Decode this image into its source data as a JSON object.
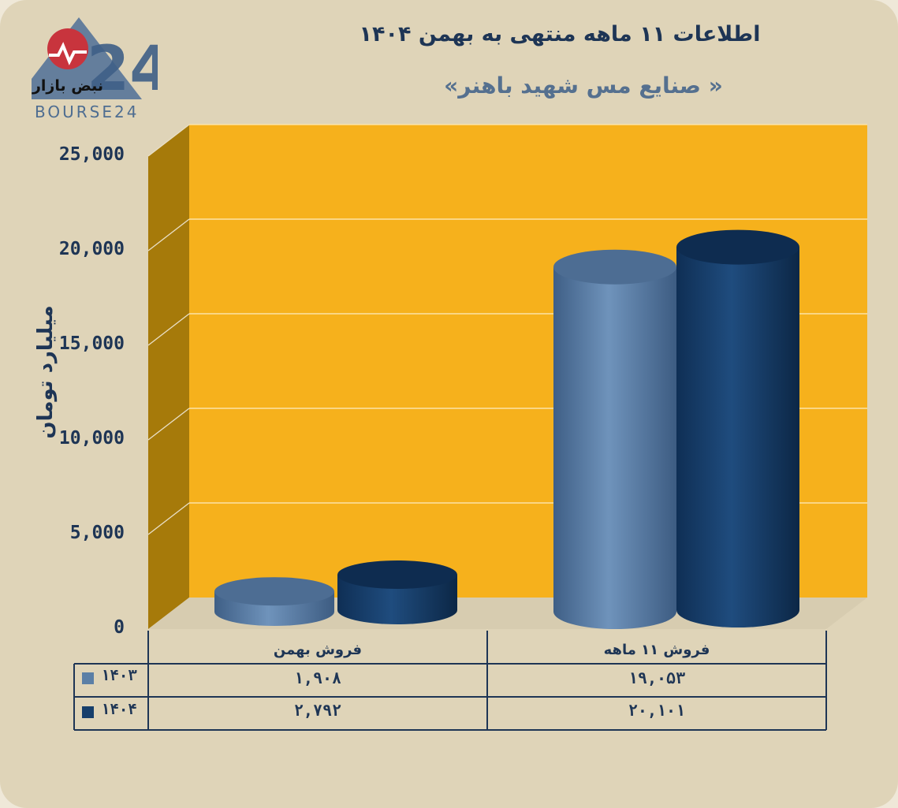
{
  "header": {
    "title": "اطلاعات ۱۱ ماهه منتهی به بهمن ۱۴۰۴",
    "subtitle": "« صنایع مس شهید باهنر»"
  },
  "logo": {
    "text_fa": "نبض بازار",
    "text_en": "BOURSE24",
    "mark": "24"
  },
  "colors": {
    "card_bg": "#dfd4b8",
    "plot_back": "#f6b11c",
    "plot_side": "#a67a0a",
    "series_1403": "#5b7fa6",
    "series_1404": "#173f6b",
    "text": "#1e3555"
  },
  "chart_data": {
    "type": "bar",
    "style": "3d-cylinder",
    "title": "اطلاعات ۱۱ ماهه منتهی به بهمن ۱۴۰۴",
    "subtitle": "« صنایع مس شهید باهنر»",
    "ylabel": "میلیارد تومان",
    "ylim": [
      0,
      25000
    ],
    "yticks": [
      0,
      5000,
      10000,
      15000,
      20000,
      25000
    ],
    "ytick_labels": [
      "0",
      "5,000",
      "10,000",
      "15,000",
      "20,000",
      "25,000"
    ],
    "categories": [
      "فروش بهمن",
      "فروش ۱۱ ماهه"
    ],
    "series": [
      {
        "name": "۱۴۰۳",
        "values": [
          1908,
          19053
        ],
        "value_labels": [
          "۱,۹۰۸",
          "۱۹,۰۵۳"
        ]
      },
      {
        "name": "۱۴۰۴",
        "values": [
          2792,
          20101
        ],
        "value_labels": [
          "۲,۷۹۲",
          "۲۰,۱۰۱"
        ]
      }
    ],
    "data_table": true,
    "grid": true
  }
}
